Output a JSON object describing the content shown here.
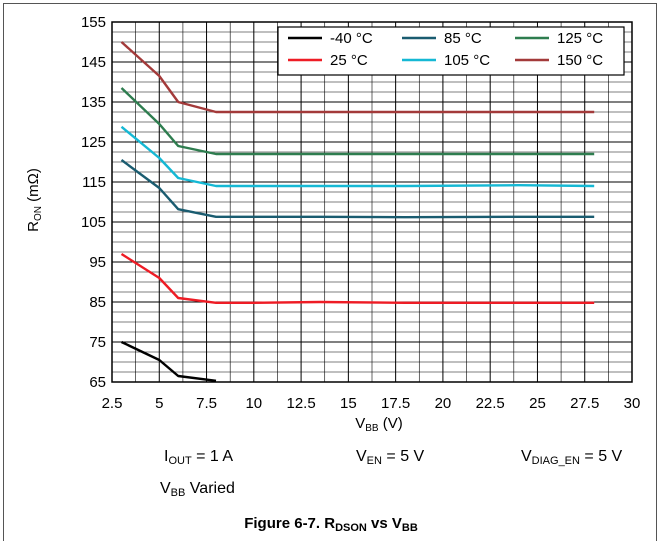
{
  "chart_data": {
    "type": "line",
    "xlabel_main": "V",
    "xlabel_sub": "BB",
    "xlabel_tail": " (V)",
    "ylabel_main": "R",
    "ylabel_sub": "ON",
    "ylabel_tail": " (mΩ)",
    "xlim": [
      2.5,
      30
    ],
    "ylim": [
      65,
      155
    ],
    "xticks": [
      2.5,
      5,
      7.5,
      10,
      12.5,
      15,
      17.5,
      20,
      22.5,
      25,
      27.5,
      30
    ],
    "yticks": [
      65,
      75,
      85,
      95,
      105,
      115,
      125,
      135,
      145,
      155
    ],
    "grid": true,
    "legend_position": "top-right",
    "series": [
      {
        "name": "-40 °C",
        "color": "#000000",
        "x": [
          3,
          5,
          6,
          8
        ],
        "y": [
          75,
          70.5,
          66.5,
          65.3
        ]
      },
      {
        "name": "25 °C",
        "color": "#ee1c25",
        "x": [
          3,
          5,
          6,
          8,
          10,
          13.5,
          18,
          24,
          28
        ],
        "y": [
          97,
          91,
          86,
          84.8,
          84.8,
          85,
          84.8,
          84.8,
          84.8
        ]
      },
      {
        "name": "85 °C",
        "color": "#1a5c70",
        "x": [
          3,
          5,
          6,
          8,
          10,
          13.5,
          18,
          24,
          28
        ],
        "y": [
          120.5,
          113.5,
          108.2,
          106.3,
          106.3,
          106.3,
          106.2,
          106.3,
          106.3
        ]
      },
      {
        "name": "105 °C",
        "color": "#15b8d4",
        "x": [
          3,
          5,
          6,
          8,
          10,
          13.5,
          18,
          24,
          28
        ],
        "y": [
          128.8,
          121,
          116,
          114,
          114,
          114,
          114,
          114.2,
          114
        ]
      },
      {
        "name": "125 °C",
        "color": "#2e7d4f",
        "x": [
          3,
          5,
          6,
          8,
          10,
          13.5,
          18,
          24,
          28
        ],
        "y": [
          138.5,
          129.5,
          124,
          122,
          122,
          122,
          122,
          122,
          122
        ]
      },
      {
        "name": "150 °C",
        "color": "#a33a3a",
        "x": [
          3,
          5,
          6,
          8,
          10,
          13.5,
          18,
          24,
          28
        ],
        "y": [
          150,
          141.5,
          135,
          132.5,
          132.5,
          132.5,
          132.5,
          132.5,
          132.5
        ]
      }
    ]
  },
  "conditions": {
    "iout": {
      "main": "I",
      "sub": "OUT",
      "tail": " = 1 A"
    },
    "ven": {
      "main": "V",
      "sub": "EN",
      "tail": " = 5 V"
    },
    "vdiag": {
      "main": "V",
      "sub": "DIAG_EN",
      "tail": " = 5 V"
    },
    "vbb": {
      "main": "V",
      "sub": "BB",
      "tail": " Varied"
    }
  },
  "caption": {
    "prefix": "Figure 6-7. R",
    "sub1": "DSON",
    "mid": " vs V",
    "sub2": "BB"
  }
}
